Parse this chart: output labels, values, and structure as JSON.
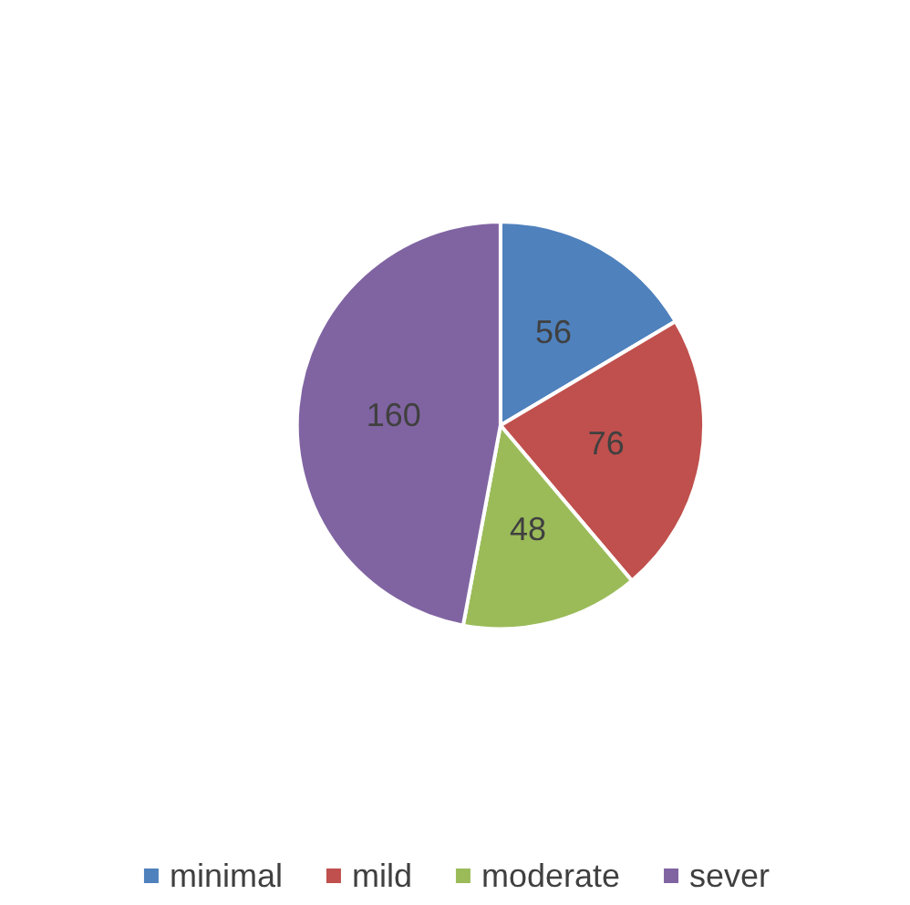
{
  "chart_data": {
    "type": "pie",
    "categories": [
      "minimal",
      "mild",
      "moderate",
      "sever"
    ],
    "values": [
      56,
      76,
      48,
      160
    ],
    "colors": [
      "#4f81bd",
      "#c0504d",
      "#9bbb59",
      "#8064a2"
    ],
    "data_labels": true,
    "legend": "bottom"
  }
}
